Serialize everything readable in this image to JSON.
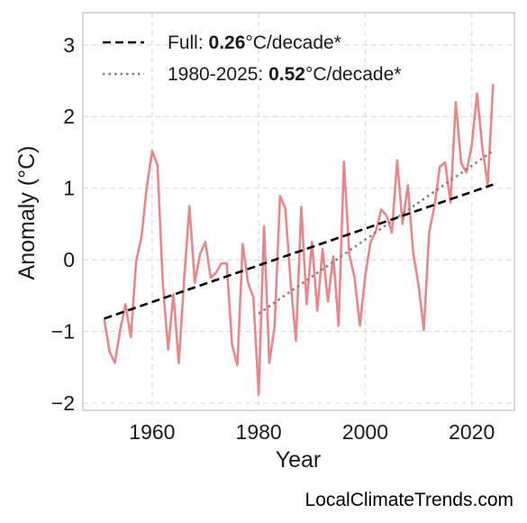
{
  "chart_data": {
    "type": "line",
    "xlabel": "Year",
    "ylabel": "Anomaly (°C)",
    "xlim": [
      1947,
      2028
    ],
    "ylim": [
      -2.1,
      3.45
    ],
    "xticks": [
      1960,
      1980,
      2000,
      2020
    ],
    "yticks": [
      -2,
      -1,
      0,
      1,
      2,
      3
    ],
    "ytick_labels": [
      "−2",
      "−1",
      "0",
      "1",
      "2",
      "3"
    ],
    "grid": true,
    "legend_position": "top-left",
    "series": [
      {
        "x": [
          1951,
          1952,
          1953,
          1954,
          1955,
          1956,
          1957,
          1958,
          1959,
          1960,
          1961,
          1962,
          1963,
          1964,
          1965,
          1966,
          1967,
          1968,
          1969,
          1970,
          1971,
          1972,
          1973,
          1974,
          1975,
          1976,
          1977,
          1978,
          1979,
          1980,
          1981,
          1982,
          1983,
          1984,
          1985,
          1986,
          1987,
          1988,
          1989,
          1990,
          1991,
          1992,
          1993,
          1994,
          1995,
          1996,
          1997,
          1998,
          1999,
          2000,
          2001,
          2002,
          2003,
          2004,
          2005,
          2006,
          2007,
          2008,
          2009,
          2010,
          2011,
          2012,
          2013,
          2014,
          2015,
          2016,
          2017,
          2018,
          2019,
          2020,
          2021,
          2022,
          2023,
          2024
        ],
        "values": [
          -0.82,
          -1.28,
          -1.44,
          -0.98,
          -0.62,
          -1.08,
          -0.02,
          0.32,
          1.02,
          1.52,
          1.32,
          -0.32,
          -1.25,
          -0.48,
          -1.44,
          -0.28,
          0.75,
          -0.32,
          0.08,
          0.25,
          -0.25,
          -0.18,
          -0.05,
          -0.05,
          -1.18,
          -1.47,
          0.22,
          -0.32,
          -0.52,
          -1.88,
          0.47,
          -1.44,
          -0.92,
          0.89,
          0.72,
          -0.32,
          -1.13,
          0.74,
          -0.62,
          0.25,
          -0.71,
          0.15,
          -0.58,
          0.05,
          -0.92,
          1.37,
          0.08,
          -0.25,
          -0.92,
          -0.22,
          0.25,
          0.4,
          0.7,
          0.62,
          0.38,
          1.39,
          0.5,
          1.04,
          0.1,
          -0.35,
          -0.98,
          0.38,
          0.75,
          1.3,
          1.36,
          0.8,
          2.2,
          1.35,
          1.22,
          1.6,
          2.32,
          1.55,
          1.05,
          2.45
        ],
        "color": "#e8868a"
      }
    ],
    "trend_full": {
      "name": "Full",
      "rate": "0.26",
      "x": [
        1951,
        2024
      ],
      "y": [
        -0.82,
        1.05
      ],
      "color": "#000000",
      "style": "dashed"
    },
    "trend_recent": {
      "name": "1980-2025",
      "rate": "0.52",
      "x": [
        1980,
        2024
      ],
      "y": [
        -0.75,
        1.52
      ],
      "color": "#808080",
      "style": "dotted"
    },
    "legend": {
      "full": {
        "prefix": "Full: ",
        "value": "0.26",
        "suffix": "°C/decade*"
      },
      "recent": {
        "prefix": "1980-2025: ",
        "value": "0.52",
        "suffix": "°C/decade*"
      }
    },
    "source": "LocalClimateTrends.com"
  }
}
